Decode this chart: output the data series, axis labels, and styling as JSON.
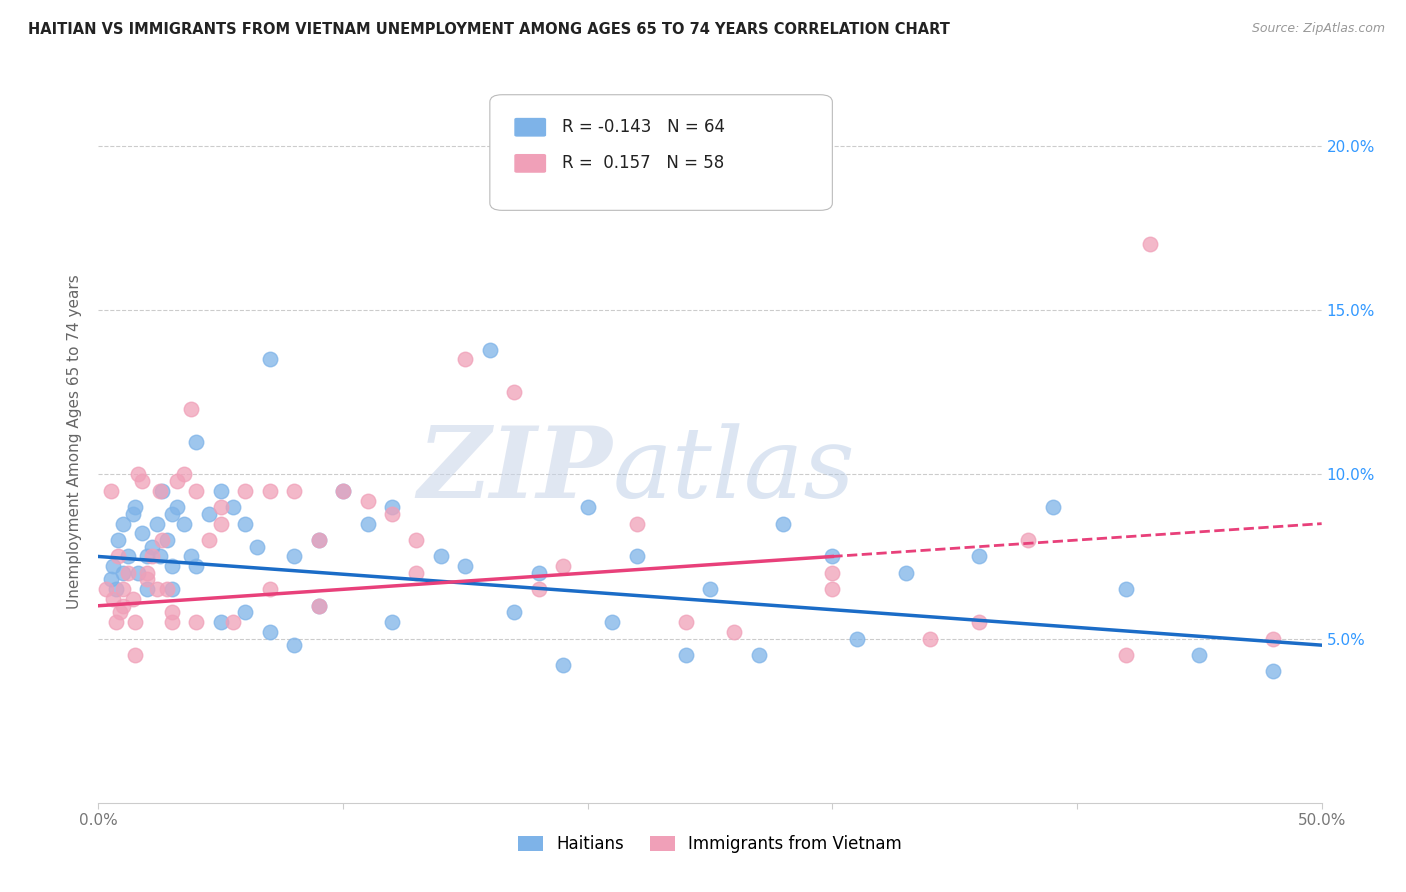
{
  "title": "HAITIAN VS IMMIGRANTS FROM VIETNAM UNEMPLOYMENT AMONG AGES 65 TO 74 YEARS CORRELATION CHART",
  "source": "Source: ZipAtlas.com",
  "ylabel": "Unemployment Among Ages 65 to 74 years",
  "legend_label1": "Haitians",
  "legend_label2": "Immigrants from Vietnam",
  "R1": "-0.143",
  "N1": "64",
  "R2": "0.157",
  "N2": "58",
  "color_blue": "#7EB3E8",
  "color_pink": "#F0A0B8",
  "trendline_blue": "#1B6CC7",
  "trendline_pink": "#E8407A",
  "xlim": [
    0,
    50
  ],
  "ylim": [
    0,
    22
  ],
  "x_tick_positions": [
    0,
    10,
    20,
    30,
    40,
    50
  ],
  "x_tick_labels": [
    "0.0%",
    "",
    "",
    "",
    "",
    "50.0%"
  ],
  "y_tick_positions": [
    5,
    10,
    15,
    20
  ],
  "y_tick_labels": [
    "5.0%",
    "10.0%",
    "15.0%",
    "20.0%"
  ],
  "blue_points_x": [
    0.5,
    0.6,
    0.7,
    0.8,
    1.0,
    1.2,
    1.4,
    1.5,
    1.6,
    1.8,
    2.0,
    2.2,
    2.4,
    2.5,
    2.6,
    2.8,
    3.0,
    3.0,
    3.2,
    3.5,
    3.8,
    4.0,
    4.5,
    5.0,
    5.5,
    6.0,
    6.5,
    7.0,
    8.0,
    9.0,
    10.0,
    11.0,
    12.0,
    14.0,
    16.0,
    18.0,
    20.0,
    22.0,
    25.0,
    28.0,
    30.0,
    33.0,
    36.0,
    39.0,
    42.0,
    45.0,
    48.0,
    1.0,
    2.0,
    3.0,
    4.0,
    5.0,
    6.0,
    7.0,
    8.0,
    9.0,
    12.0,
    15.0,
    17.0,
    19.0,
    21.0,
    24.0,
    27.0,
    31.0
  ],
  "blue_points_y": [
    6.8,
    7.2,
    6.5,
    8.0,
    8.5,
    7.5,
    8.8,
    9.0,
    7.0,
    8.2,
    6.5,
    7.8,
    8.5,
    7.5,
    9.5,
    8.0,
    8.8,
    7.2,
    9.0,
    8.5,
    7.5,
    11.0,
    8.8,
    9.5,
    9.0,
    8.5,
    7.8,
    13.5,
    7.5,
    8.0,
    9.5,
    8.5,
    9.0,
    7.5,
    13.8,
    7.0,
    9.0,
    7.5,
    6.5,
    8.5,
    7.5,
    7.0,
    7.5,
    9.0,
    6.5,
    4.5,
    4.0,
    7.0,
    7.5,
    6.5,
    7.2,
    5.5,
    5.8,
    5.2,
    4.8,
    6.0,
    5.5,
    7.2,
    5.8,
    4.2,
    5.5,
    4.5,
    4.5,
    5.0
  ],
  "pink_points_x": [
    0.3,
    0.5,
    0.6,
    0.8,
    0.9,
    1.0,
    1.2,
    1.4,
    1.5,
    1.6,
    1.8,
    2.0,
    2.2,
    2.4,
    2.5,
    2.6,
    2.8,
    3.0,
    3.2,
    3.5,
    3.8,
    4.0,
    4.5,
    5.0,
    5.5,
    6.0,
    7.0,
    8.0,
    9.0,
    10.0,
    11.0,
    12.0,
    13.0,
    15.0,
    17.0,
    19.0,
    22.0,
    26.0,
    30.0,
    34.0,
    38.0,
    43.0,
    1.0,
    2.0,
    3.0,
    4.0,
    5.0,
    7.0,
    9.0,
    13.0,
    18.0,
    24.0,
    30.0,
    36.0,
    42.0,
    48.0,
    0.7,
    1.5
  ],
  "pink_points_y": [
    6.5,
    9.5,
    6.2,
    7.5,
    5.8,
    6.5,
    7.0,
    6.2,
    5.5,
    10.0,
    9.8,
    6.8,
    7.5,
    6.5,
    9.5,
    8.0,
    6.5,
    5.5,
    9.8,
    10.0,
    12.0,
    9.5,
    8.0,
    9.0,
    5.5,
    9.5,
    9.5,
    9.5,
    8.0,
    9.5,
    9.2,
    8.8,
    8.0,
    13.5,
    12.5,
    7.2,
    8.5,
    5.2,
    7.0,
    5.0,
    8.0,
    17.0,
    6.0,
    7.0,
    5.8,
    5.5,
    8.5,
    6.5,
    6.0,
    7.0,
    6.5,
    5.5,
    6.5,
    5.5,
    4.5,
    5.0,
    5.5,
    4.5
  ]
}
